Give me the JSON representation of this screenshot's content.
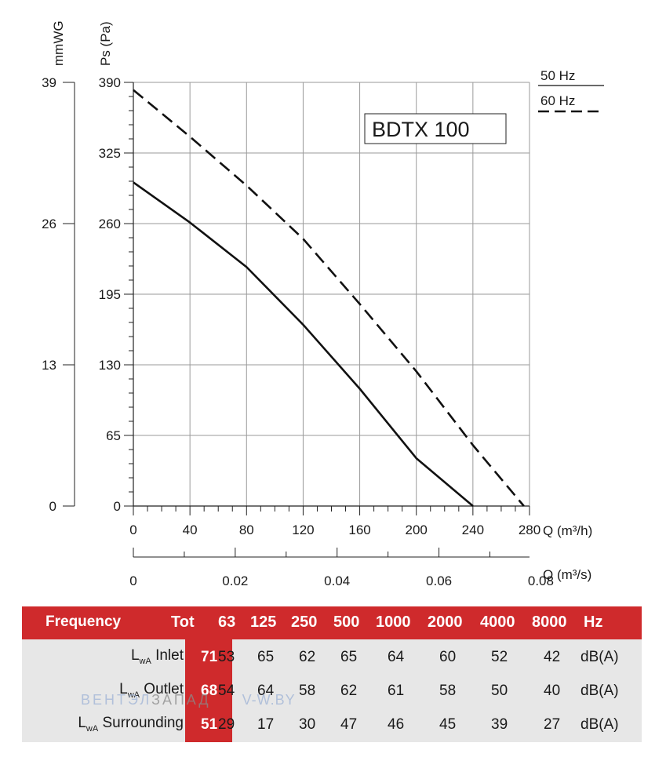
{
  "chart_data": {
    "type": "line",
    "model": "BDTX 100",
    "y_left": {
      "label": "mmWG",
      "ticks": [
        "39",
        "26",
        "13",
        "0"
      ]
    },
    "y_main": {
      "label": "Ps (Pa)",
      "ticks": [
        390,
        325,
        260,
        195,
        130,
        65,
        0
      ],
      "ylim": [
        0,
        390
      ]
    },
    "x_main": {
      "label": "Q (m³/h)",
      "ticks": [
        0,
        40,
        80,
        120,
        160,
        200,
        240,
        280
      ],
      "xlim": [
        0,
        280
      ]
    },
    "x_secondary": {
      "label": "Q (m³/s)",
      "ticks": [
        "0",
        "0.02",
        "0.04",
        "0.06",
        "0.08"
      ]
    },
    "grid": true,
    "legend": {
      "position": "top-right",
      "entries": [
        {
          "label": "50 Hz",
          "style": "solid"
        },
        {
          "label": "60 Hz",
          "style": "dashed"
        }
      ]
    },
    "series": [
      {
        "name": "50 Hz",
        "style": "solid",
        "x": [
          0,
          40,
          80,
          120,
          160,
          200,
          240
        ],
        "y": [
          298,
          261,
          220,
          167,
          108,
          44,
          0
        ]
      },
      {
        "name": "60 Hz",
        "style": "dashed",
        "x": [
          0,
          40,
          80,
          120,
          160,
          200,
          240,
          276
        ],
        "y": [
          383,
          340,
          295,
          246,
          186,
          124,
          56,
          0
        ]
      }
    ]
  },
  "sound_table": {
    "header": {
      "frequency": "Frequency",
      "tot": "Tot",
      "bands": [
        "63",
        "125",
        "250",
        "500",
        "1000",
        "2000",
        "4000",
        "8000"
      ],
      "unit": "Hz"
    },
    "rows": [
      {
        "label_main": "L",
        "label_sub": "wA",
        "label_rest": " Inlet",
        "tot": "71",
        "values": [
          "53",
          "65",
          "62",
          "65",
          "64",
          "60",
          "52",
          "42"
        ],
        "unit": "dB(A)"
      },
      {
        "label_main": "L",
        "label_sub": "wA",
        "label_rest": " Outlet",
        "tot": "68",
        "values": [
          "54",
          "64",
          "58",
          "62",
          "61",
          "58",
          "50",
          "40"
        ],
        "unit": "dB(A)"
      },
      {
        "label_main": "L",
        "label_sub": "wA",
        "label_rest": " Surrounding",
        "tot": "51",
        "values": [
          "29",
          "17",
          "30",
          "47",
          "46",
          "45",
          "39",
          "27"
        ],
        "unit": "dB(A)"
      }
    ]
  },
  "watermark": {
    "part1": "ВЕНТЭЛ",
    "part2": "ЗАПАД",
    "part3": "V-W.BY"
  },
  "colors": {
    "header_red": "#cf2a2c",
    "table_grey": "#e7e7e7",
    "curve": "#111111"
  }
}
